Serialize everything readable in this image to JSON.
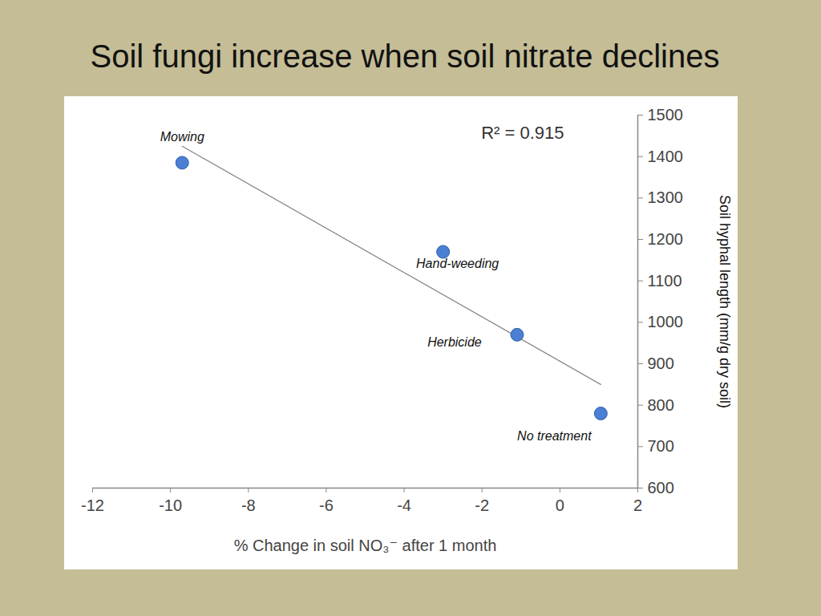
{
  "chart_data": {
    "type": "scatter",
    "title": "Soil fungi increase when soil nitrate declines",
    "x_label": "% Change in soil NO₃⁻ after 1 month",
    "y_label": "Soil hyphal length (mm/g dry soil)",
    "annotations": [
      "R² = 0.915"
    ],
    "categories": [
      "Mowing",
      "Hand-weeding",
      "Herbicide",
      "No treatment"
    ],
    "x": [
      -9.7,
      -3.0,
      -1.1,
      1.05
    ],
    "values": [
      1385,
      1170,
      970,
      780
    ],
    "color": "#4a7fd4",
    "marker": "circle",
    "trendline": {
      "x": [
        -9.7,
        1.05
      ],
      "y": [
        1425,
        850
      ]
    },
    "xlim": [
      -12,
      2
    ],
    "xticks": [
      -12,
      -10,
      -8,
      -6,
      -4,
      -2,
      0,
      2
    ],
    "ylim": [
      600,
      1500
    ],
    "yticks": [
      600,
      700,
      800,
      900,
      1000,
      1100,
      1200,
      1300,
      1400,
      1500
    ],
    "grid": false
  }
}
